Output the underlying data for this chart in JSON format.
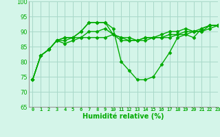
{
  "xlabel": "Humidité relative (%)",
  "xlim": [
    -0.5,
    23
  ],
  "ylim": [
    65,
    100
  ],
  "yticks": [
    65,
    70,
    75,
    80,
    85,
    90,
    95,
    100
  ],
  "xticks": [
    0,
    1,
    2,
    3,
    4,
    5,
    6,
    7,
    8,
    9,
    10,
    11,
    12,
    13,
    14,
    15,
    16,
    17,
    18,
    19,
    20,
    21,
    22,
    23
  ],
  "background_color": "#d4f5e9",
  "grid_color": "#a8d8c8",
  "line_color": "#00aa00",
  "marker": "D",
  "markersize": 2.5,
  "linewidth": 1.0,
  "lines": [
    [
      74,
      82,
      84,
      87,
      88,
      88,
      90,
      93,
      93,
      93,
      91,
      80,
      77,
      74,
      74,
      75,
      79,
      83,
      88,
      89,
      88,
      91,
      92,
      92
    ],
    [
      74,
      82,
      84,
      87,
      88,
      88,
      90,
      93,
      93,
      93,
      89,
      87,
      87,
      87,
      88,
      88,
      89,
      90,
      90,
      91,
      90,
      91,
      92,
      92
    ],
    [
      74,
      82,
      84,
      87,
      87,
      88,
      88,
      90,
      90,
      91,
      89,
      88,
      87,
      87,
      87,
      88,
      88,
      89,
      89,
      90,
      90,
      90,
      92,
      92
    ],
    [
      74,
      82,
      84,
      87,
      86,
      87,
      88,
      88,
      88,
      88,
      89,
      88,
      88,
      87,
      88,
      88,
      88,
      88,
      89,
      89,
      90,
      90,
      91,
      92
    ]
  ]
}
